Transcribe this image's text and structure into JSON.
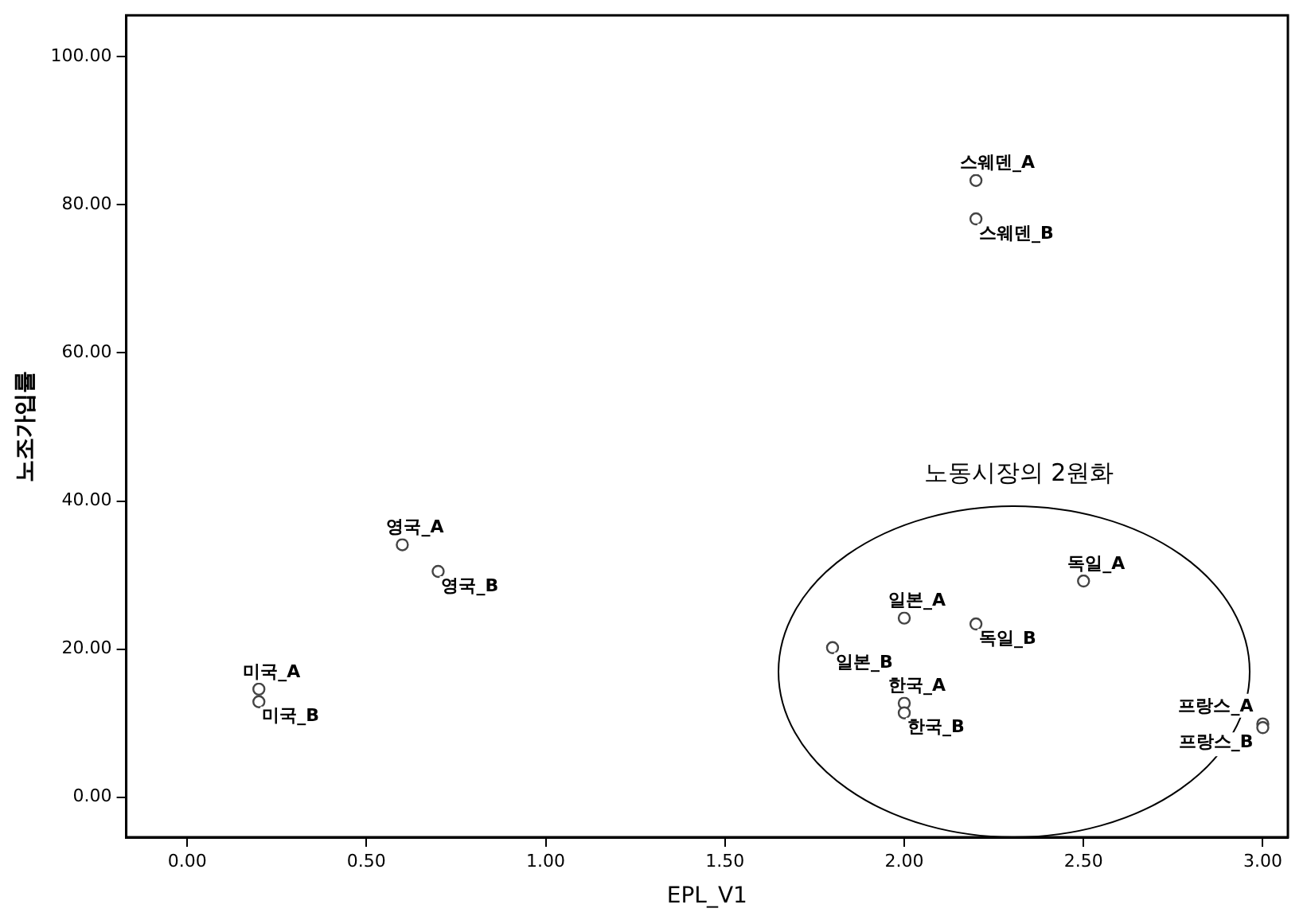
{
  "chart_data": {
    "type": "scatter",
    "xlabel": "EPL_V1",
    "ylabel": "노조가입률",
    "annotations": [
      "노동시장의 2원화"
    ],
    "xlim": [
      -0.17,
      3.07
    ],
    "xticks": [
      {
        "value": 0,
        "label": "0.00"
      },
      {
        "value": 0.5,
        "label": "0.50"
      },
      {
        "value": 1,
        "label": "1.00"
      },
      {
        "value": 1.5,
        "label": "1.50"
      },
      {
        "value": 2,
        "label": "2.00"
      },
      {
        "value": 2.5,
        "label": "2.50"
      },
      {
        "value": 3,
        "label": "3.00"
      }
    ],
    "ylim": [
      -5.4,
      105.6
    ],
    "yticks": [
      {
        "value": 0,
        "label": "0.00"
      },
      {
        "value": 20,
        "label": "20.00"
      },
      {
        "value": 40,
        "label": "40.00"
      },
      {
        "value": 60,
        "label": "60.00"
      },
      {
        "value": 80,
        "label": "80.00"
      },
      {
        "value": 100,
        "label": "100.00"
      }
    ],
    "grid": false,
    "legend": false,
    "marker": "circle",
    "series": [
      {
        "color": "#444444",
        "x": [
          0.2,
          0.2,
          0.6,
          0.7,
          2.2,
          2.2,
          2.5,
          2.2,
          2.0,
          1.8,
          2.0,
          2.0,
          3.0,
          3.0
        ],
        "values": [
          14.6,
          12.9,
          34.1,
          30.5,
          83.3,
          78.1,
          29.2,
          23.4,
          24.2,
          20.2,
          12.7,
          11.4,
          9.9,
          9.4
        ],
        "value_labels": [
          "미국_A",
          "미국_B",
          "영국_A",
          "영국_B",
          "스웨덴_A",
          "스웨덴_B",
          "독일_A",
          "독일_B",
          "일본_A",
          "일본_B",
          "한국_A",
          "한국_B",
          "프랑스_A",
          "프랑스_B"
        ]
      }
    ]
  }
}
